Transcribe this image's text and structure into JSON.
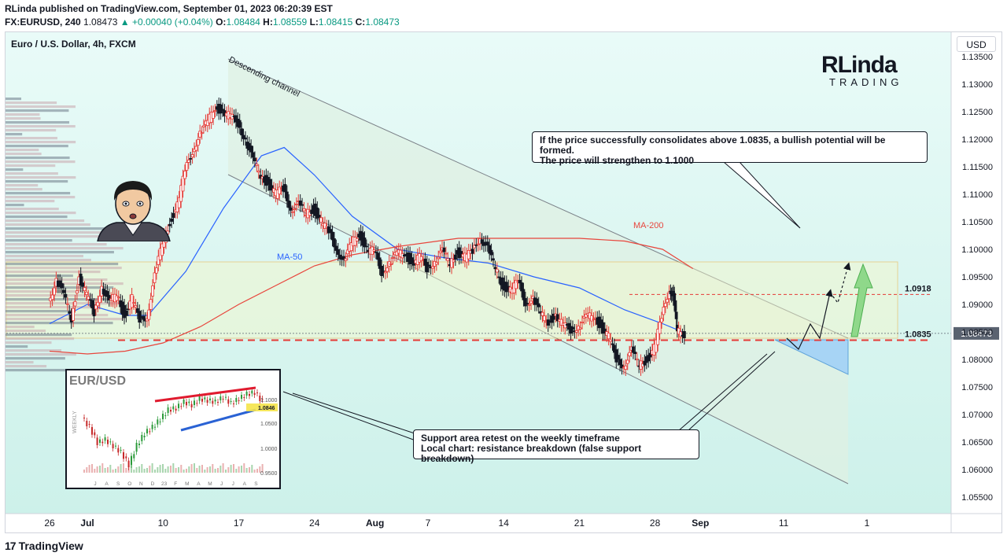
{
  "header": {
    "publisher_line": "RLinda published on TradingView.com, September 01, 2023 06:20:39 EST",
    "symbol": "FX:EURUSD, 240",
    "last": "1.08473",
    "change": "▲ +0.00040 (+0.04%)",
    "o_label": "O:",
    "o": "1.08484",
    "h_label": "H:",
    "h": "1.08559",
    "l_label": "L:",
    "l": "1.08415",
    "c_label": "C:",
    "c": "1.08473"
  },
  "currency_button": "USD",
  "footer": {
    "brand": "TradingView"
  },
  "logo": {
    "line1": "RLinda",
    "line2": "TRADING"
  },
  "colors": {
    "up": "#089981",
    "down": "#131722",
    "ma50": "#2962ff",
    "ma200": "#e8453c",
    "level_line": "#e53935",
    "channel_fill": "#e6f3e9",
    "zone_border": "#f5a623",
    "bg_top": "#e9fbf8",
    "bg_bottom": "#d4f3ec"
  },
  "chart_data": {
    "type": "candlestick",
    "title": "Euro / U.S. Dollar, 4h, FXCM",
    "y_axis": {
      "min": 1.05,
      "max": 1.135,
      "ticks": [
        "1.13500",
        "1.13000",
        "1.12500",
        "1.12000",
        "1.11500",
        "1.11000",
        "1.10500",
        "1.10000",
        "1.09500",
        "1.09000",
        "1.08500",
        "1.08000",
        "1.07500",
        "1.07000",
        "1.06500",
        "1.06000",
        "1.05500"
      ],
      "tick_values": [
        1.135,
        1.13,
        1.125,
        1.12,
        1.115,
        1.11,
        1.105,
        1.1,
        1.095,
        1.09,
        1.085,
        1.08,
        1.075,
        1.07,
        1.065,
        1.06,
        1.055
      ]
    },
    "x_axis": {
      "labels": [
        "26",
        "Jul",
        "10",
        "17",
        "24",
        "Aug",
        "7",
        "14",
        "21",
        "28",
        "Sep",
        "11",
        "1"
      ],
      "label_positions": [
        0.0,
        0.5,
        1.5,
        2.5,
        3.5,
        4.3,
        5.0,
        6.0,
        7.0,
        8.0,
        8.6,
        9.7,
        10.8
      ]
    },
    "price_path": [
      [
        0.0,
        1.0905
      ],
      [
        0.1,
        1.0945
      ],
      [
        0.2,
        1.0915
      ],
      [
        0.3,
        1.0875
      ],
      [
        0.4,
        1.095
      ],
      [
        0.5,
        1.0915
      ],
      [
        0.6,
        1.0885
      ],
      [
        0.7,
        1.0935
      ],
      [
        0.8,
        1.09
      ],
      [
        0.9,
        1.092
      ],
      [
        1.0,
        1.088
      ],
      [
        1.1,
        1.091
      ],
      [
        1.2,
        1.087
      ],
      [
        1.3,
        1.088
      ],
      [
        1.4,
        1.095
      ],
      [
        1.5,
        1.101
      ],
      [
        1.6,
        1.105
      ],
      [
        1.7,
        1.108
      ],
      [
        1.8,
        1.114
      ],
      [
        1.9,
        1.118
      ],
      [
        2.0,
        1.121
      ],
      [
        2.1,
        1.123
      ],
      [
        2.2,
        1.126
      ],
      [
        2.3,
        1.125
      ],
      [
        2.4,
        1.124
      ],
      [
        2.5,
        1.123
      ],
      [
        2.6,
        1.12
      ],
      [
        2.7,
        1.116
      ],
      [
        2.8,
        1.1135
      ],
      [
        2.9,
        1.112
      ],
      [
        3.0,
        1.11
      ],
      [
        3.1,
        1.111
      ],
      [
        3.2,
        1.1075
      ],
      [
        3.3,
        1.108
      ],
      [
        3.4,
        1.1065
      ],
      [
        3.5,
        1.1075
      ],
      [
        3.6,
        1.105
      ],
      [
        3.7,
        1.103
      ],
      [
        3.8,
        1.1005
      ],
      [
        3.9,
        1.0975
      ],
      [
        4.0,
        1.101
      ],
      [
        4.1,
        1.103
      ],
      [
        4.2,
        1.1
      ],
      [
        4.3,
        1.0995
      ],
      [
        4.4,
        1.096
      ],
      [
        4.5,
        1.0975
      ],
      [
        4.6,
        1.099
      ],
      [
        4.7,
        1.0995
      ],
      [
        4.8,
        1.0975
      ],
      [
        4.9,
        1.0985
      ],
      [
        5.0,
        1.0965
      ],
      [
        5.1,
        1.098
      ],
      [
        5.2,
        1.0995
      ],
      [
        5.3,
        1.0975
      ],
      [
        5.4,
        1.0995
      ],
      [
        5.5,
        1.0985
      ],
      [
        5.6,
        1.0995
      ],
      [
        5.7,
        1.1025
      ],
      [
        5.8,
        1.1
      ],
      [
        5.9,
        1.0965
      ],
      [
        6.0,
        1.0935
      ],
      [
        6.1,
        1.0925
      ],
      [
        6.2,
        1.094
      ],
      [
        6.3,
        1.0905
      ],
      [
        6.4,
        1.091
      ],
      [
        6.5,
        1.088
      ],
      [
        6.6,
        1.087
      ],
      [
        6.7,
        1.088
      ],
      [
        6.8,
        1.086
      ],
      [
        6.9,
        1.0855
      ],
      [
        7.0,
        1.086
      ],
      [
        7.1,
        1.0875
      ],
      [
        7.2,
        1.088
      ],
      [
        7.3,
        1.086
      ],
      [
        7.4,
        1.084
      ],
      [
        7.5,
        1.08
      ],
      [
        7.6,
        1.079
      ],
      [
        7.7,
        1.0815
      ],
      [
        7.8,
        1.079
      ],
      [
        7.9,
        1.08
      ],
      [
        8.0,
        1.082
      ],
      [
        8.1,
        1.0875
      ],
      [
        8.2,
        1.093
      ],
      [
        8.25,
        1.0915
      ],
      [
        8.3,
        1.085
      ],
      [
        8.4,
        1.0847
      ]
    ],
    "series": [
      {
        "name": "MA-50",
        "values": [
          [
            0.0,
            1.0865
          ],
          [
            0.5,
            1.09
          ],
          [
            1.0,
            1.088
          ],
          [
            1.3,
            1.088
          ],
          [
            1.8,
            1.096
          ],
          [
            2.3,
            1.1075
          ],
          [
            2.8,
            1.117
          ],
          [
            3.1,
            1.1185
          ],
          [
            3.5,
            1.1135
          ],
          [
            4.0,
            1.106
          ],
          [
            4.6,
            1.1
          ],
          [
            5.2,
            1.0985
          ],
          [
            5.8,
            1.0975
          ],
          [
            6.4,
            1.095
          ],
          [
            7.0,
            1.093
          ],
          [
            7.6,
            1.089
          ],
          [
            8.1,
            1.0865
          ],
          [
            8.4,
            1.0848
          ]
        ]
      },
      {
        "name": "MA-200",
        "values": [
          [
            0.0,
            1.0815
          ],
          [
            0.5,
            1.081
          ],
          [
            1.0,
            1.0815
          ],
          [
            1.5,
            1.083
          ],
          [
            2.0,
            1.086
          ],
          [
            2.5,
            1.09
          ],
          [
            3.0,
            1.0935
          ],
          [
            3.5,
            1.097
          ],
          [
            4.0,
            1.099
          ],
          [
            4.6,
            1.1005
          ],
          [
            5.4,
            1.102
          ],
          [
            6.2,
            1.102
          ],
          [
            7.0,
            1.102
          ],
          [
            7.6,
            1.1015
          ],
          [
            8.1,
            1.1
          ],
          [
            8.5,
            1.0965
          ]
        ]
      }
    ],
    "levels": [
      {
        "label": "1.0918",
        "value": 1.0918
      },
      {
        "label": "1.0835",
        "value": 1.0835
      }
    ],
    "current_price_label": "1.08473",
    "annotations": {
      "channel_label": "Descending channel",
      "ma50_label": "MA-50",
      "ma200_label": "MA-200",
      "note_top": [
        "If the price successfully consolidates above 1.0835, a bullish potential will be formed.",
        "The price will strengthen to 1.1000"
      ],
      "note_bottom": [
        "Support area retest on the weekly timeframe",
        "Local chart: resistance breakdown (false support breakdown)"
      ]
    },
    "inset": {
      "title": "EUR/USD",
      "side_label": "WEEKLY",
      "y_ticks": [
        "1.1000",
        "1.0500",
        "1.0000",
        "0.9500"
      ],
      "price_tag": "1.0846",
      "x_labels": [
        "J",
        "A",
        "S",
        "O",
        "N",
        "D",
        "23",
        "F",
        "M",
        "A",
        "M",
        "J",
        "J",
        "A",
        "S"
      ]
    }
  }
}
